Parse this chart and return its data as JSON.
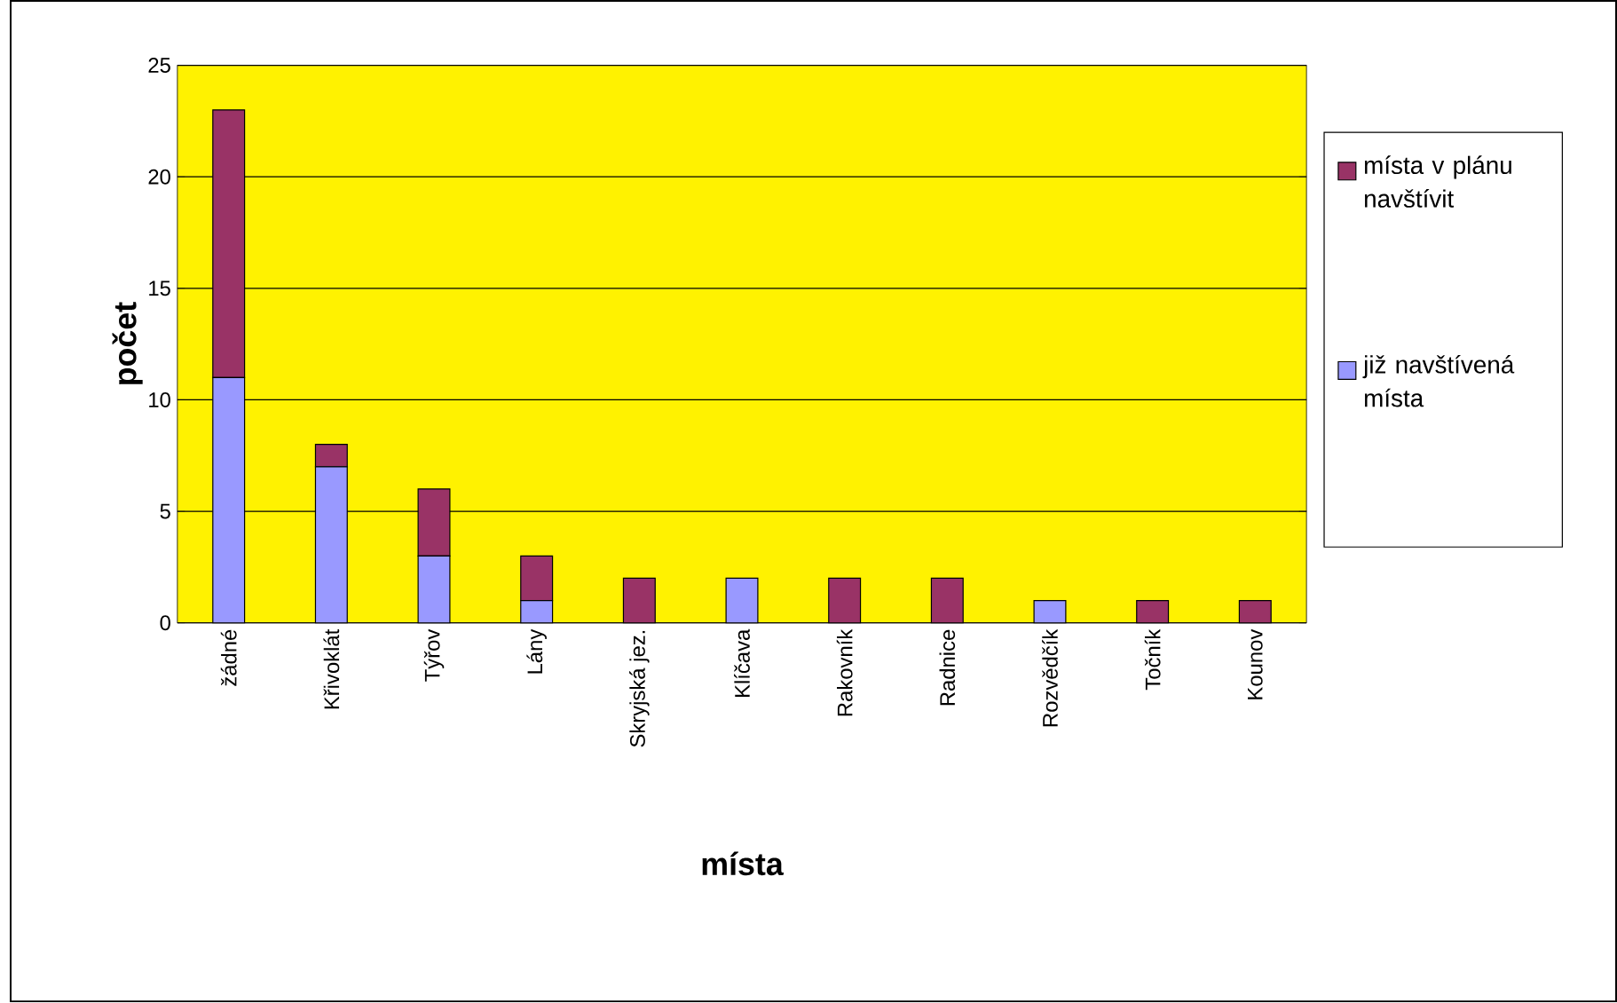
{
  "chart_data": {
    "type": "bar",
    "stacked": true,
    "xlabel": "místa",
    "ylabel": "počet",
    "categories": [
      "žádné",
      "Křivoklát",
      "Týřov",
      "Lány",
      "Skryjská jez.",
      "Klíčava",
      "Rakovník",
      "Radnice",
      "Rozvědčík",
      "Točník",
      "Kounov"
    ],
    "series": [
      {
        "name": "již navštívená místa",
        "color": "#9999ff",
        "values": [
          11,
          7,
          3,
          1,
          0,
          2,
          0,
          0,
          1,
          0,
          0
        ]
      },
      {
        "name": "místa v plánu navštívit",
        "color": "#993366",
        "values": [
          12,
          1,
          3,
          2,
          2,
          0,
          2,
          2,
          0,
          1,
          1
        ]
      }
    ],
    "ylim": [
      0,
      25
    ],
    "yticks": [
      0,
      5,
      10,
      15,
      20,
      25
    ],
    "grid": "y",
    "legend": "right"
  }
}
